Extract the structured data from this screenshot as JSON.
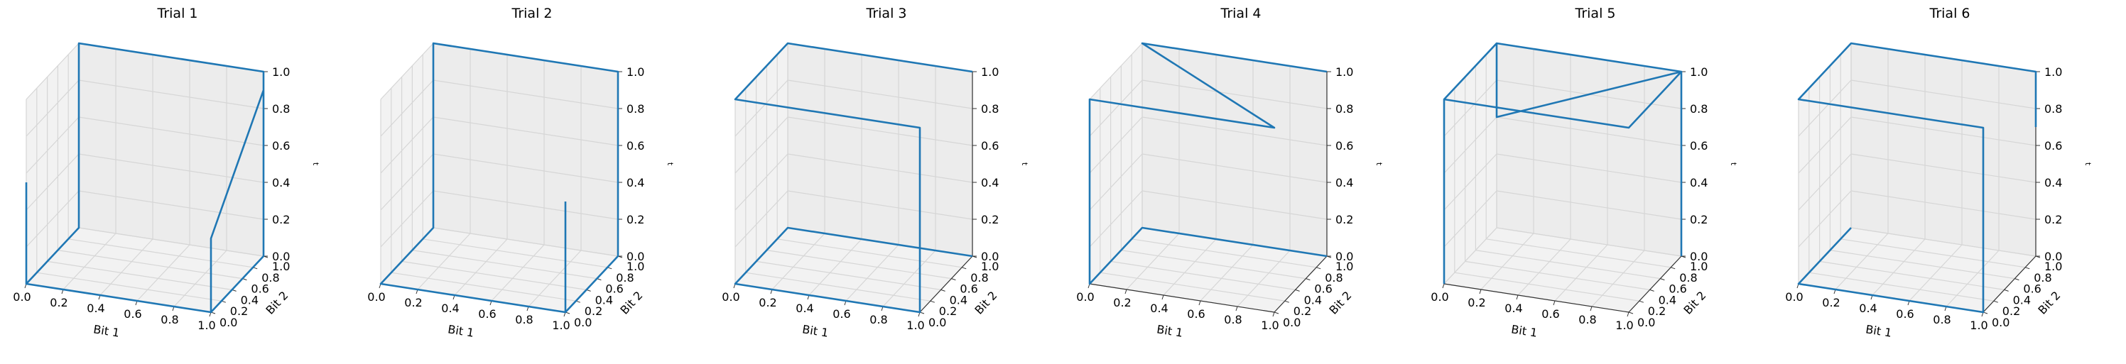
{
  "chart_data": [
    {
      "type": "line3d",
      "title": "Trial 1",
      "xlabel": "Bit 1",
      "ylabel": "Bit 2",
      "zlabel": "t",
      "xlim": [
        0,
        1
      ],
      "ylim": [
        0,
        1
      ],
      "zlim": [
        0,
        1
      ],
      "xticks": [
        "0.0",
        "0.2",
        "0.4",
        "0.6",
        "0.8",
        "1.0"
      ],
      "yticks": [
        "0.0",
        "0.2",
        "0.4",
        "0.6",
        "0.8",
        "1.0"
      ],
      "zticks": [
        "0.0",
        "0.2",
        "0.4",
        "0.6",
        "0.8",
        "1.0"
      ],
      "grid": true,
      "color": "#1f77b4",
      "path": [
        [
          0,
          0,
          0.55
        ],
        [
          0,
          0,
          0
        ],
        [
          1,
          0,
          0
        ],
        [
          1,
          1,
          0
        ],
        [
          1,
          1,
          1
        ],
        [
          0,
          1,
          1
        ],
        [
          0,
          1,
          0
        ],
        [
          0,
          0,
          0
        ],
        [
          1,
          0,
          0
        ],
        [
          1,
          0,
          0.4
        ],
        [
          1,
          1,
          0.9
        ]
      ]
    },
    {
      "type": "line3d",
      "title": "Trial 2",
      "xlabel": "Bit 1",
      "ylabel": "Bit 2",
      "zlabel": "t",
      "xlim": [
        0,
        1
      ],
      "ylim": [
        0,
        1
      ],
      "zlim": [
        0,
        1
      ],
      "xticks": [
        "0.0",
        "0.2",
        "0.4",
        "0.6",
        "0.8",
        "1.0"
      ],
      "yticks": [
        "0.0",
        "0.2",
        "0.4",
        "0.6",
        "0.8",
        "1.0"
      ],
      "zticks": [
        "0.0",
        "0.2",
        "0.4",
        "0.6",
        "0.8",
        "1.0"
      ],
      "grid": true,
      "color": "#1f77b4",
      "path": [
        [
          0,
          0,
          0
        ],
        [
          1,
          0,
          0
        ],
        [
          1,
          1,
          0
        ],
        [
          1,
          1,
          1
        ],
        [
          0,
          1,
          1
        ],
        [
          0,
          1,
          0
        ],
        [
          0,
          0,
          0
        ],
        [
          1,
          0,
          0
        ],
        [
          1,
          0,
          0.6
        ]
      ]
    },
    {
      "type": "line3d",
      "title": "Trial 3",
      "xlabel": "Bit 1",
      "ylabel": "Bit 2",
      "zlabel": "t",
      "xlim": [
        0,
        1
      ],
      "ylim": [
        0,
        1
      ],
      "zlim": [
        0,
        1
      ],
      "xticks": [
        "0.0",
        "0.2",
        "0.4",
        "0.6",
        "0.8",
        "1.0"
      ],
      "yticks": [
        "0.0",
        "0.2",
        "0.4",
        "0.6",
        "0.8",
        "1.0"
      ],
      "zticks": [
        "0.0",
        "0.2",
        "0.4",
        "0.6",
        "0.8",
        "1.0"
      ],
      "grid": true,
      "color": "#1f77b4",
      "path": [
        [
          1,
          1,
          0
        ],
        [
          0,
          1,
          0
        ],
        [
          0,
          0,
          0
        ],
        [
          1,
          0,
          0
        ],
        [
          1,
          0,
          1
        ],
        [
          0,
          0,
          1
        ],
        [
          0,
          1,
          1
        ],
        [
          1,
          1,
          1
        ]
      ]
    },
    {
      "type": "line3d",
      "title": "Trial 4",
      "xlabel": "Bit 1",
      "ylabel": "Bit 2",
      "zlabel": "t",
      "xlim": [
        0,
        1
      ],
      "ylim": [
        0,
        1
      ],
      "zlim": [
        0,
        1
      ],
      "xticks": [
        "0.0",
        "0.2",
        "0.4",
        "0.6",
        "0.8",
        "1.0"
      ],
      "yticks": [
        "0.0",
        "0.2",
        "0.4",
        "0.6",
        "0.8",
        "1.0"
      ],
      "zticks": [
        "0.0",
        "0.2",
        "0.4",
        "0.6",
        "0.8",
        "1.0"
      ],
      "grid": true,
      "color": "#1f77b4",
      "path": [
        [
          1,
          1,
          0
        ],
        [
          0,
          1,
          0
        ],
        [
          0,
          0,
          0
        ],
        [
          0,
          0,
          1
        ],
        [
          1,
          0,
          1
        ],
        [
          0,
          1,
          1
        ],
        [
          1,
          1,
          1
        ]
      ]
    },
    {
      "type": "line3d",
      "title": "Trial 5",
      "xlabel": "Bit 1",
      "ylabel": "Bit 2",
      "zlabel": "t",
      "xlim": [
        0,
        1
      ],
      "ylim": [
        0,
        1
      ],
      "zlim": [
        0,
        1
      ],
      "xticks": [
        "0.0",
        "0.2",
        "0.4",
        "0.6",
        "0.8",
        "1.0"
      ],
      "yticks": [
        "0.0",
        "0.2",
        "0.4",
        "0.6",
        "0.8",
        "1.0"
      ],
      "zticks": [
        "0.0",
        "0.2",
        "0.4",
        "0.6",
        "0.8",
        "1.0"
      ],
      "grid": true,
      "color": "#1f77b4",
      "path": [
        [
          1,
          1,
          0
        ],
        [
          1,
          1,
          1
        ],
        [
          0,
          1,
          1
        ],
        [
          0,
          0,
          1
        ],
        [
          1,
          0,
          1
        ],
        [
          1,
          1,
          1
        ],
        [
          0,
          1,
          0.6
        ],
        [
          0,
          1,
          1
        ],
        [
          0,
          0,
          1
        ],
        [
          0,
          0,
          0
        ]
      ]
    },
    {
      "type": "line3d",
      "title": "Trial 6",
      "xlabel": "Bit 1",
      "ylabel": "Bit 2",
      "zlabel": "t",
      "xlim": [
        0,
        1
      ],
      "ylim": [
        0,
        1
      ],
      "zlim": [
        0,
        1
      ],
      "xticks": [
        "0.0",
        "0.2",
        "0.4",
        "0.6",
        "0.8",
        "1.0"
      ],
      "yticks": [
        "0.0",
        "0.2",
        "0.4",
        "0.6",
        "0.8",
        "1.0"
      ],
      "zticks": [
        "0.0",
        "0.2",
        "0.4",
        "0.6",
        "0.8",
        "1.0"
      ],
      "grid": true,
      "color": "#1f77b4",
      "path": [
        [
          0,
          1,
          0
        ],
        [
          0,
          0,
          0
        ],
        [
          1,
          0,
          0
        ],
        [
          1,
          0,
          1
        ],
        [
          0,
          0,
          1
        ],
        [
          0,
          1,
          1
        ],
        [
          1,
          1,
          1
        ],
        [
          1,
          1,
          0.7
        ]
      ]
    }
  ]
}
